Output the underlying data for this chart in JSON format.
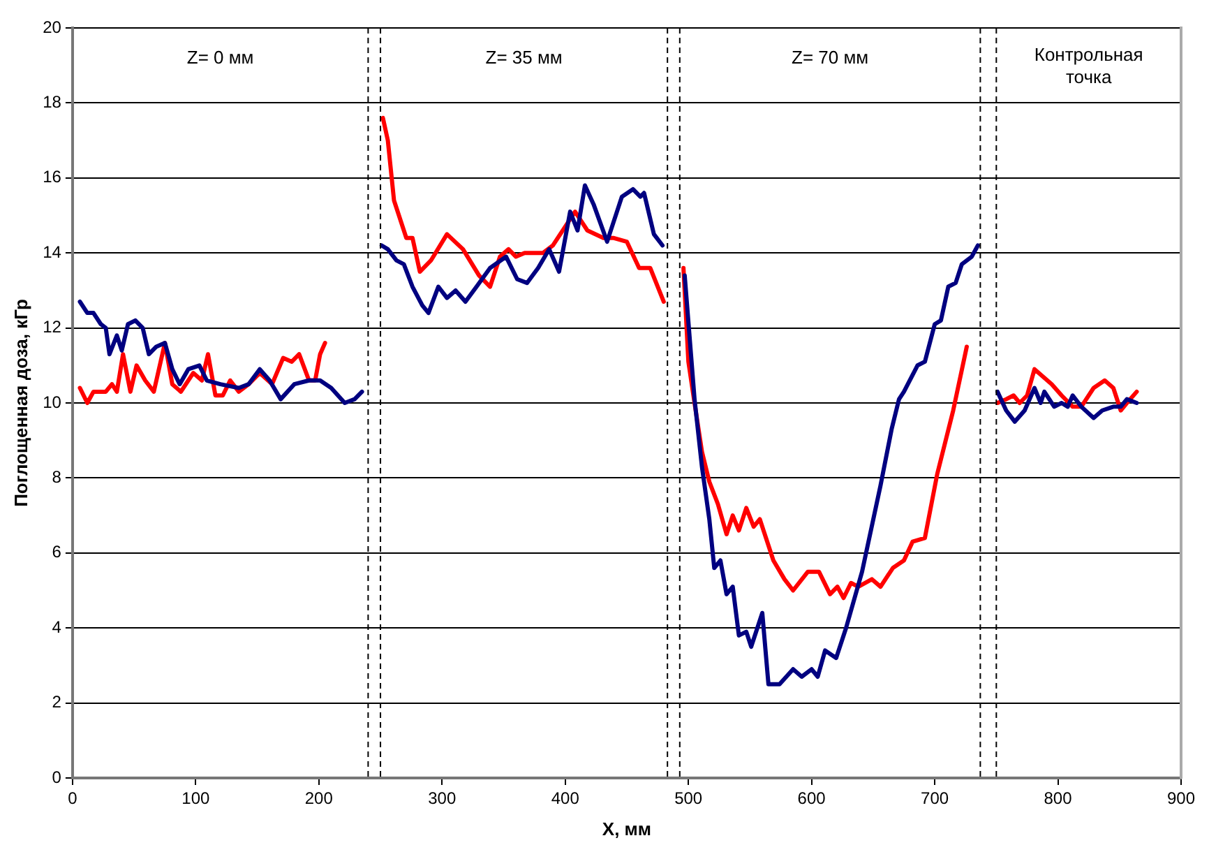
{
  "chart_data": {
    "type": "line",
    "xlabel": "X, мм",
    "ylabel": "Поглощенная доза, кГр",
    "xlim": [
      0,
      900
    ],
    "xticks": [
      0,
      100,
      200,
      300,
      400,
      500,
      600,
      700,
      800,
      900
    ],
    "ylim": [
      0,
      20
    ],
    "yticks": [
      0,
      2,
      4,
      6,
      8,
      10,
      12,
      14,
      16,
      18,
      20
    ],
    "grid": "y",
    "legend": false,
    "marker": "none",
    "line_style": "solid",
    "ref_lines": [
      {
        "axis": "x",
        "value": 240,
        "color": "#000000",
        "line_style": "dashed"
      },
      {
        "axis": "x",
        "value": 250,
        "color": "#000000",
        "line_style": "dashed"
      },
      {
        "axis": "x",
        "value": 483,
        "color": "#000000",
        "line_style": "dashed"
      },
      {
        "axis": "x",
        "value": 493,
        "color": "#000000",
        "line_style": "dashed"
      },
      {
        "axis": "x",
        "value": 737,
        "color": "#000000",
        "line_style": "dashed"
      },
      {
        "axis": "x",
        "value": 750,
        "color": "#000000",
        "line_style": "dashed"
      }
    ],
    "annotations": [
      "Z= 0 мм",
      "Z= 35 мм",
      "Z= 70 мм",
      "Контрольная точка"
    ],
    "series": [
      {
        "color": "#000080",
        "x": [
          6,
          12,
          17,
          23,
          27,
          30,
          36,
          40,
          45,
          51,
          57,
          62,
          68,
          75,
          81,
          87,
          94,
          103,
          109,
          120,
          135,
          143,
          152,
          160,
          169,
          180,
          192,
          201,
          210,
          221,
          229,
          235,
          245,
          251,
          256,
          263,
          269,
          276,
          284,
          289,
          297,
          304,
          311,
          319,
          328,
          339,
          352,
          361,
          369,
          378,
          387,
          395,
          404,
          410,
          416,
          423,
          434,
          446,
          455,
          461,
          464,
          472,
          479,
          488,
          497,
          505,
          511,
          517,
          521,
          526,
          531,
          536,
          541,
          547,
          551,
          560,
          565,
          574,
          585,
          592,
          600,
          605,
          611,
          620,
          628,
          641,
          656,
          665,
          671,
          675,
          686,
          692,
          700,
          705,
          711,
          717,
          722,
          730,
          735,
          743,
          751,
          758,
          765,
          773,
          781,
          786,
          789,
          797,
          803,
          808,
          812,
          819,
          829,
          836,
          845,
          851,
          856,
          864
        ],
        "values": [
          12.7,
          12.4,
          12.4,
          12.1,
          12.0,
          11.3,
          11.8,
          11.4,
          12.1,
          12.2,
          12.0,
          11.3,
          11.5,
          11.6,
          10.9,
          10.5,
          10.9,
          11.0,
          10.6,
          10.5,
          10.4,
          10.5,
          10.9,
          10.6,
          10.1,
          10.5,
          10.6,
          10.6,
          10.4,
          10.0,
          10.1,
          10.3,
          null,
          14.2,
          14.1,
          13.8,
          13.7,
          13.1,
          12.6,
          12.4,
          13.1,
          12.8,
          13.0,
          12.7,
          13.1,
          13.6,
          13.9,
          13.3,
          13.2,
          13.6,
          14.1,
          13.5,
          15.1,
          14.6,
          15.8,
          15.3,
          14.3,
          15.5,
          15.7,
          15.5,
          15.6,
          14.5,
          14.2,
          null,
          13.4,
          10.1,
          8.3,
          6.9,
          5.6,
          5.8,
          4.9,
          5.1,
          3.8,
          3.9,
          3.5,
          4.4,
          2.5,
          2.5,
          2.9,
          2.7,
          2.9,
          2.7,
          3.4,
          3.2,
          4.0,
          5.5,
          7.8,
          9.3,
          10.1,
          10.3,
          11.0,
          11.1,
          12.1,
          12.2,
          13.1,
          13.2,
          13.7,
          13.9,
          14.2,
          null,
          10.3,
          9.8,
          9.5,
          9.8,
          10.4,
          10.0,
          10.3,
          9.9,
          10.0,
          9.9,
          10.2,
          9.9,
          9.6,
          9.8,
          9.9,
          9.9,
          10.1,
          10.0
        ]
      },
      {
        "color": "#ff0000",
        "x": [
          6,
          12,
          17,
          27,
          32,
          36,
          41,
          47,
          52,
          59,
          66,
          75,
          81,
          88,
          98,
          105,
          110,
          116,
          122,
          128,
          135,
          143,
          152,
          162,
          171,
          178,
          184,
          192,
          197,
          201,
          205,
          228,
          252,
          256,
          261,
          271,
          276,
          282,
          291,
          304,
          317,
          330,
          339,
          347,
          354,
          360,
          367,
          382,
          390,
          408,
          418,
          431,
          439,
          450,
          460,
          469,
          480,
          488,
          496,
          500,
          505,
          511,
          517,
          524,
          531,
          536,
          541,
          547,
          553,
          558,
          569,
          578,
          585,
          597,
          606,
          615,
          621,
          626,
          632,
          638,
          649,
          656,
          666,
          675,
          682,
          692,
          702,
          715,
          726,
          738,
          751,
          758,
          764,
          769,
          775,
          781,
          788,
          795,
          803,
          812,
          819,
          829,
          838,
          845,
          851,
          856,
          864
        ],
        "values": [
          10.4,
          10.0,
          10.3,
          10.3,
          10.5,
          10.3,
          11.3,
          10.3,
          11.0,
          10.6,
          10.3,
          11.6,
          10.5,
          10.3,
          10.8,
          10.6,
          11.3,
          10.2,
          10.2,
          10.6,
          10.3,
          10.5,
          10.8,
          10.5,
          11.2,
          11.1,
          11.3,
          10.6,
          10.6,
          11.3,
          11.6,
          null,
          17.6,
          17.0,
          15.4,
          14.4,
          14.4,
          13.5,
          13.8,
          14.5,
          14.1,
          13.4,
          13.1,
          13.9,
          14.1,
          13.9,
          14.0,
          14.0,
          14.2,
          15.1,
          14.6,
          14.4,
          14.4,
          14.3,
          13.6,
          13.6,
          12.7,
          null,
          13.6,
          11.1,
          10.0,
          8.7,
          7.9,
          7.3,
          6.5,
          7.0,
          6.6,
          7.2,
          6.7,
          6.9,
          5.8,
          5.3,
          5.0,
          5.5,
          5.5,
          4.9,
          5.1,
          4.8,
          5.2,
          5.1,
          5.3,
          5.1,
          5.6,
          5.8,
          6.3,
          6.4,
          8.1,
          9.8,
          11.5,
          null,
          10.0,
          10.1,
          10.2,
          10.0,
          10.2,
          10.9,
          10.7,
          10.5,
          10.2,
          9.9,
          9.9,
          10.4,
          10.6,
          10.4,
          9.8,
          10.0,
          10.3
        ]
      }
    ]
  }
}
